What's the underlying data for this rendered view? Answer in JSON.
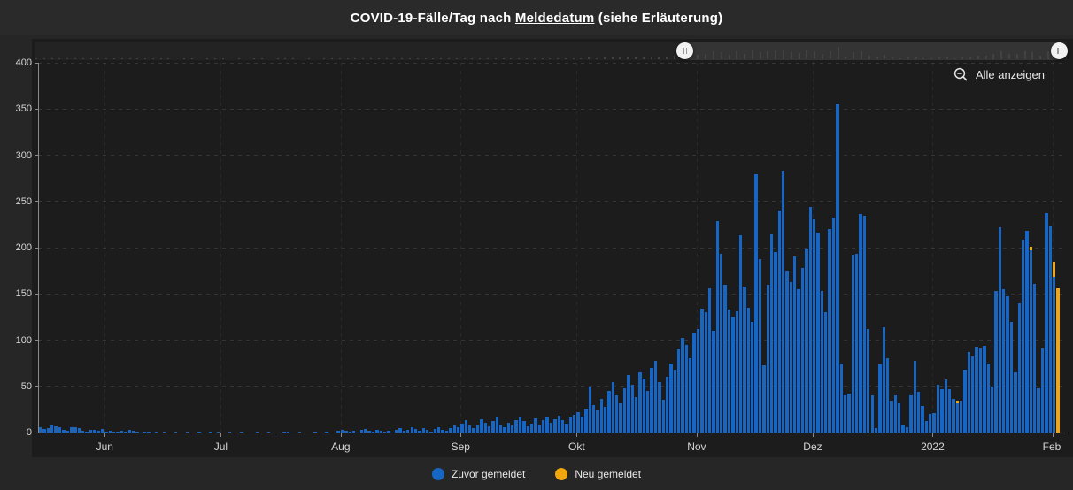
{
  "header": {
    "title_prefix": "COVID-19-Fälle/Tag nach ",
    "title_link": "Meldedatum",
    "title_suffix": " (siehe Erläuterung)"
  },
  "toolbar": {
    "zoom_out_label": "Alle anzeigen"
  },
  "slider": {
    "left_handle_pos": 0.63,
    "right_handle_pos": 0.993
  },
  "colors": {
    "page_bg": "#262626",
    "panel_bg": "#1c1c1c",
    "title_bg": "#2a2a2a",
    "previous_blue": "#1766c4",
    "new_orange": "#f2a50c",
    "axis": "#8a8a8a",
    "text": "#d6d6d6"
  },
  "legend": {
    "items": [
      {
        "label": "Zuvor gemeldet",
        "color": "#1766c4"
      },
      {
        "label": "Neu gemeldet",
        "color": "#f2a50c"
      }
    ]
  },
  "chart_data": {
    "type": "bar",
    "stacked": true,
    "title": "COVID-19-Fälle/Tag nach Meldedatum (siehe Erläuterung)",
    "xlabel": "",
    "ylabel": "",
    "ylim": [
      0,
      400
    ],
    "y_ticks": [
      0,
      50,
      100,
      150,
      200,
      250,
      300,
      350,
      400
    ],
    "grid": "dashed",
    "legend_position": "bottom",
    "x_tick_labels": [
      "Jun",
      "Jul",
      "Aug",
      "Sep",
      "Okt",
      "Nov",
      "Dez",
      "2022",
      "Feb"
    ],
    "month_start_indices": [
      17,
      47,
      78,
      109,
      139,
      170,
      200,
      231,
      262
    ],
    "series": [
      {
        "name": "Zuvor gemeldet",
        "color": "#1766c4",
        "values": [
          6,
          4,
          5,
          8,
          7,
          6,
          3,
          2,
          6,
          6,
          5,
          2,
          1,
          3,
          3,
          2,
          4,
          1,
          2,
          1,
          1,
          2,
          1,
          3,
          2,
          1,
          0,
          1,
          1,
          0,
          1,
          0,
          1,
          0,
          0,
          1,
          0,
          0,
          1,
          0,
          0,
          1,
          0,
          0,
          1,
          0,
          1,
          0,
          0,
          1,
          0,
          0,
          1,
          0,
          0,
          0,
          1,
          0,
          0,
          1,
          0,
          0,
          0,
          1,
          1,
          0,
          0,
          1,
          0,
          0,
          0,
          1,
          0,
          0,
          1,
          0,
          0,
          2,
          3,
          2,
          1,
          2,
          0,
          3,
          4,
          2,
          1,
          3,
          2,
          1,
          2,
          0,
          3,
          5,
          2,
          3,
          6,
          4,
          2,
          5,
          3,
          1,
          4,
          6,
          3,
          2,
          5,
          8,
          6,
          10,
          13,
          8,
          5,
          9,
          14,
          11,
          7,
          12,
          16,
          9,
          6,
          11,
          8,
          13,
          16,
          12,
          7,
          10,
          15,
          9,
          13,
          16,
          11,
          14,
          18,
          13,
          10,
          16,
          19,
          22,
          17,
          26,
          50,
          30,
          24,
          36,
          28,
          45,
          55,
          40,
          32,
          48,
          62,
          52,
          38,
          65,
          58,
          45,
          70,
          78,
          55,
          35,
          60,
          75,
          68,
          90,
          102,
          95,
          80,
          108,
          112,
          134,
          130,
          156,
          110,
          229,
          193,
          160,
          133,
          125,
          131,
          213,
          158,
          135,
          120,
          279,
          188,
          73,
          160,
          215,
          195,
          240,
          283,
          175,
          163,
          190,
          155,
          178,
          199,
          244,
          231,
          216,
          153,
          130,
          220,
          233,
          355,
          75,
          40,
          42,
          192,
          193,
          236,
          234,
          112,
          40,
          5,
          74,
          114,
          80,
          34,
          40,
          32,
          9,
          6,
          40,
          78,
          44,
          29,
          12,
          20,
          21,
          52,
          47,
          57,
          47,
          36,
          32,
          34,
          68,
          87,
          82,
          93,
          91,
          94,
          75,
          50,
          153,
          222,
          155,
          147,
          120,
          65,
          140,
          209,
          218,
          197,
          161,
          48,
          91,
          237,
          223,
          168,
          0,
          0
        ]
      },
      {
        "name": "Neu gemeldet",
        "color": "#f2a50c",
        "values": [
          0,
          0,
          0,
          0,
          0,
          0,
          0,
          0,
          0,
          0,
          0,
          0,
          0,
          0,
          0,
          0,
          0,
          0,
          0,
          0,
          0,
          0,
          0,
          0,
          0,
          0,
          0,
          0,
          0,
          0,
          0,
          0,
          0,
          0,
          0,
          0,
          0,
          0,
          0,
          0,
          0,
          0,
          0,
          0,
          0,
          0,
          0,
          0,
          0,
          0,
          0,
          0,
          0,
          0,
          0,
          0,
          0,
          0,
          0,
          0,
          0,
          0,
          0,
          0,
          0,
          0,
          0,
          0,
          0,
          0,
          0,
          0,
          0,
          0,
          0,
          0,
          0,
          0,
          0,
          0,
          0,
          0,
          0,
          0,
          0,
          0,
          0,
          0,
          0,
          0,
          0,
          0,
          0,
          0,
          0,
          0,
          0,
          0,
          0,
          0,
          0,
          0,
          0,
          0,
          0,
          0,
          0,
          0,
          0,
          0,
          0,
          0,
          0,
          0,
          0,
          0,
          0,
          0,
          0,
          0,
          0,
          0,
          0,
          0,
          0,
          0,
          0,
          0,
          0,
          0,
          0,
          0,
          0,
          0,
          0,
          0,
          0,
          0,
          0,
          0,
          0,
          0,
          0,
          0,
          0,
          0,
          0,
          0,
          0,
          0,
          0,
          0,
          0,
          0,
          0,
          0,
          0,
          0,
          0,
          0,
          0,
          0,
          0,
          0,
          0,
          0,
          0,
          0,
          0,
          0,
          0,
          0,
          0,
          0,
          0,
          0,
          0,
          0,
          0,
          0,
          0,
          0,
          0,
          0,
          0,
          0,
          0,
          0,
          0,
          0,
          0,
          0,
          0,
          0,
          0,
          0,
          0,
          0,
          0,
          0,
          0,
          0,
          0,
          0,
          0,
          0,
          0,
          0,
          0,
          0,
          0,
          0,
          0,
          0,
          0,
          0,
          0,
          0,
          0,
          0,
          0,
          0,
          0,
          0,
          0,
          0,
          0,
          0,
          0,
          0,
          0,
          0,
          0,
          0,
          0,
          0,
          0,
          2,
          0,
          0,
          0,
          0,
          0,
          0,
          0,
          0,
          0,
          0,
          0,
          0,
          0,
          0,
          0,
          0,
          0,
          0,
          4,
          0,
          0,
          0,
          0,
          0,
          17,
          156,
          0
        ]
      }
    ]
  }
}
